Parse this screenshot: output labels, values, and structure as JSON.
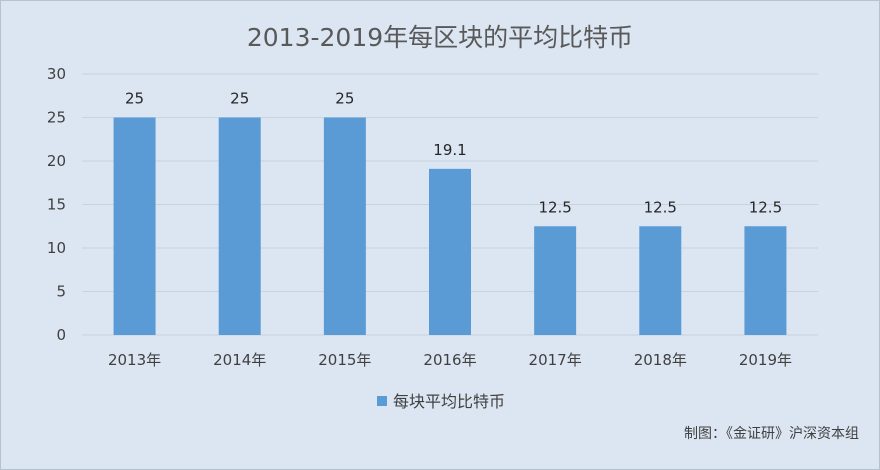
{
  "chart_data": {
    "type": "bar",
    "title": "2013-2019年每区块的平均比特币",
    "categories": [
      "2013年",
      "2014年",
      "2015年",
      "2016年",
      "2017年",
      "2018年",
      "2019年"
    ],
    "series": [
      {
        "name": "每块平均比特币",
        "values": [
          25,
          25,
          25,
          19.1,
          12.5,
          12.5,
          12.5
        ],
        "color": "#5b9bd5"
      }
    ],
    "ylim": [
      0,
      30
    ],
    "yticks": [
      0,
      5,
      10,
      15,
      20,
      25,
      30
    ],
    "grid": true,
    "legend_position": "bottom"
  },
  "source_note": "制图：《金证研》沪深资本组",
  "colors": {
    "background": "#dce6f2",
    "grid": "#c9d3de",
    "bar": "#5b9bd5"
  }
}
